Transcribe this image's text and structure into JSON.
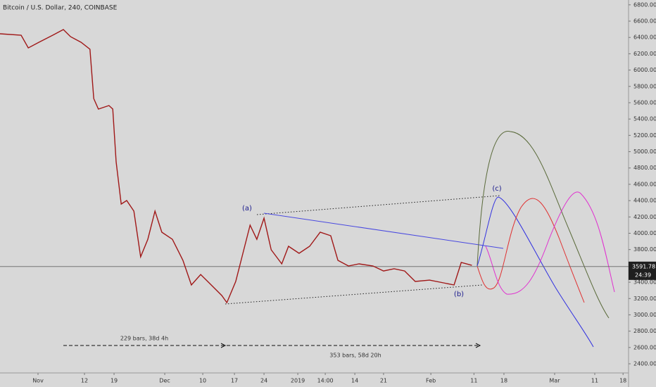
{
  "chart_data": {
    "type": "line",
    "title": "Bitcoin / U.S. Dollar, 240, COINBASE",
    "x": [
      -9,
      -4,
      -2.3,
      0.2,
      3.5,
      6,
      7.7,
      10.2,
      12.3,
      13.2,
      14.3,
      16.8,
      17.7,
      18.5,
      19.7,
      21,
      22.7,
      24.3,
      26,
      27.7,
      29.3,
      31.8,
      34.3,
      36.3,
      38.5,
      41,
      43.5,
      44.7,
      46.8,
      48.5,
      50.2,
      51.8,
      53.5,
      55.2,
      57.7,
      59.3,
      61.8,
      64.3,
      66.8,
      69.3,
      71,
      73.5,
      76,
      79.3,
      81.8,
      84.3,
      86.8,
      89.3,
      92.7,
      96,
      98.5,
      100.2,
      102.7
    ],
    "values": [
      6445,
      6428,
      6272,
      6341,
      6428,
      6497,
      6410,
      6341,
      6255,
      5651,
      5522,
      5565,
      5522,
      4875,
      4358,
      4401,
      4272,
      3711,
      3926,
      4272,
      4013,
      3926,
      3668,
      3366,
      3495,
      3366,
      3237,
      3150,
      3409,
      3754,
      4099,
      3926,
      4185,
      3797,
      3625,
      3840,
      3754,
      3840,
      4013,
      3970,
      3668,
      3599,
      3625,
      3599,
      3538,
      3564,
      3538,
      3409,
      3426,
      3392,
      3366,
      3642,
      3607
    ],
    "color": "#a01818",
    "xlim": [
      -9,
      139.8
    ],
    "xticks": [
      {
        "value": 0,
        "label": "Nov"
      },
      {
        "value": 11,
        "label": "12"
      },
      {
        "value": 18,
        "label": "19"
      },
      {
        "value": 30,
        "label": "Dec"
      },
      {
        "value": 39,
        "label": "10"
      },
      {
        "value": 46.5,
        "label": "17"
      },
      {
        "value": 53.5,
        "label": "24"
      },
      {
        "value": 61.5,
        "label": "2019"
      },
      {
        "value": 68,
        "label": "14:00"
      },
      {
        "value": 75,
        "label": "14"
      },
      {
        "value": 81.8,
        "label": "21"
      },
      {
        "value": 93,
        "label": "Feb"
      },
      {
        "value": 103.2,
        "label": "11"
      },
      {
        "value": 110.3,
        "label": "18"
      },
      {
        "value": 122.3,
        "label": "Mar"
      },
      {
        "value": 131.8,
        "label": "11"
      },
      {
        "value": 138.5,
        "label": "18"
      }
    ],
    "ylim": [
      2288,
      6859
    ],
    "yticks": [
      {
        "value": 2400,
        "label": "2400.00"
      },
      {
        "value": 2600,
        "label": "2600.00"
      },
      {
        "value": 2800,
        "label": "2800.00"
      },
      {
        "value": 3000,
        "label": "3000.00"
      },
      {
        "value": 3200,
        "label": "3200.00"
      },
      {
        "value": 3400,
        "label": "3400.00"
      },
      {
        "value": 3800,
        "label": "3800.00"
      },
      {
        "value": 4000,
        "label": "4000.00"
      },
      {
        "value": 4200,
        "label": "4200.00"
      },
      {
        "value": 4400,
        "label": "4400.00"
      },
      {
        "value": 4600,
        "label": "4600.00"
      },
      {
        "value": 4800,
        "label": "4800.00"
      },
      {
        "value": 5000,
        "label": "5000.00"
      },
      {
        "value": 5200,
        "label": "5200.00"
      },
      {
        "value": 5400,
        "label": "5400.00"
      },
      {
        "value": 5600,
        "label": "5600.00"
      },
      {
        "value": 5800,
        "label": "5800.00"
      },
      {
        "value": 6000,
        "label": "6000.00"
      },
      {
        "value": 6200,
        "label": "6200.00"
      },
      {
        "value": 6400,
        "label": "6400.00"
      },
      {
        "value": 6600,
        "label": "6600.00"
      },
      {
        "value": 6800,
        "label": "6800.00"
      }
    ],
    "last_price": {
      "value": 3591.78,
      "label": "3591.78"
    },
    "countdown": "24:39",
    "annotations": [
      "(a)",
      "(b)",
      "(c)"
    ],
    "measures": [
      "229 bars, 38d 4h",
      "353 bars, 58d 20h"
    ]
  }
}
